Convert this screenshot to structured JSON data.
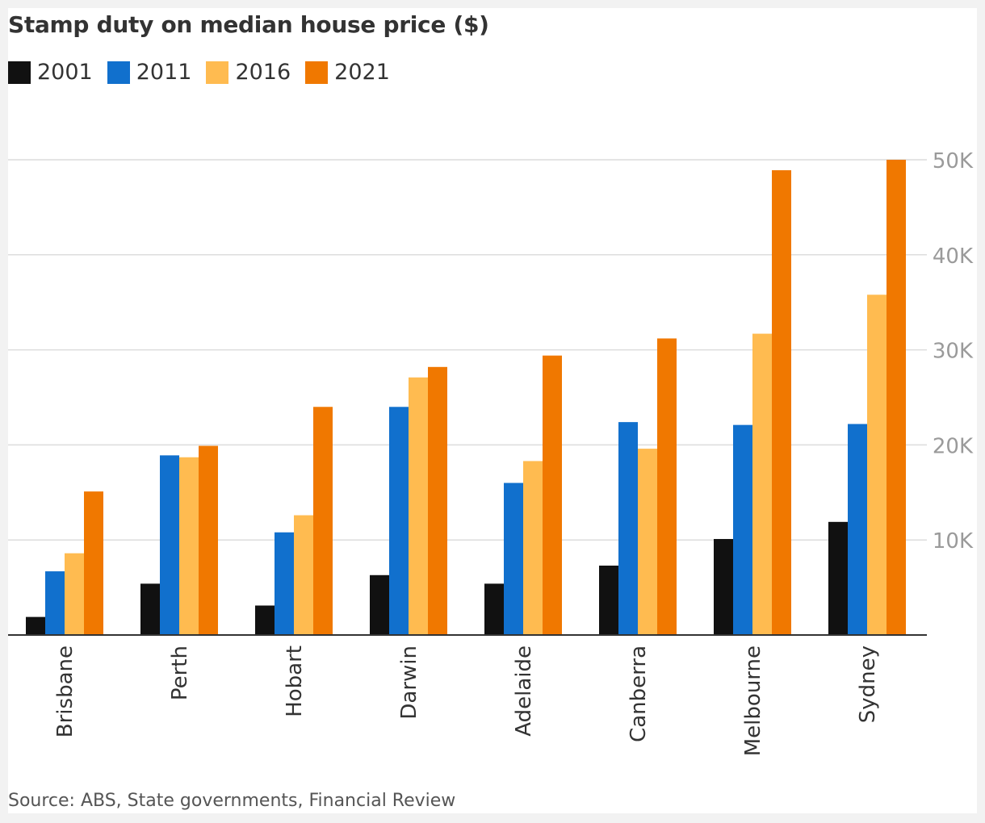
{
  "chart_data": {
    "type": "bar",
    "title": "Stamp duty on median house price ($)",
    "categories": [
      "Brisbane",
      "Perth",
      "Hobart",
      "Darwin",
      "Adelaide",
      "Canberra",
      "Melbourne",
      "Sydney"
    ],
    "series": [
      {
        "name": "2001",
        "color": "#111111",
        "values": [
          1900,
          5400,
          3100,
          6300,
          5400,
          7300,
          10100,
          11900
        ]
      },
      {
        "name": "2011",
        "color": "#1170cd",
        "values": [
          6700,
          18900,
          10800,
          24000,
          16000,
          22400,
          22100,
          22200
        ]
      },
      {
        "name": "2016",
        "color": "#ffbb50",
        "values": [
          8600,
          18700,
          12600,
          27100,
          18300,
          19600,
          31700,
          35800
        ]
      },
      {
        "name": "2021",
        "color": "#f07800",
        "values": [
          15100,
          19900,
          24000,
          28200,
          29400,
          31200,
          48900,
          50000
        ]
      }
    ],
    "ylim": [
      0,
      50000
    ],
    "yticks": [
      10000,
      20000,
      30000,
      40000,
      50000
    ],
    "ytick_labels": [
      "10K",
      "20K",
      "30K",
      "40K",
      "50K"
    ],
    "y_axis_side": "right",
    "grid": true,
    "legend_position": "top-left",
    "source": "Source: ABS, State governments, Financial Review"
  }
}
